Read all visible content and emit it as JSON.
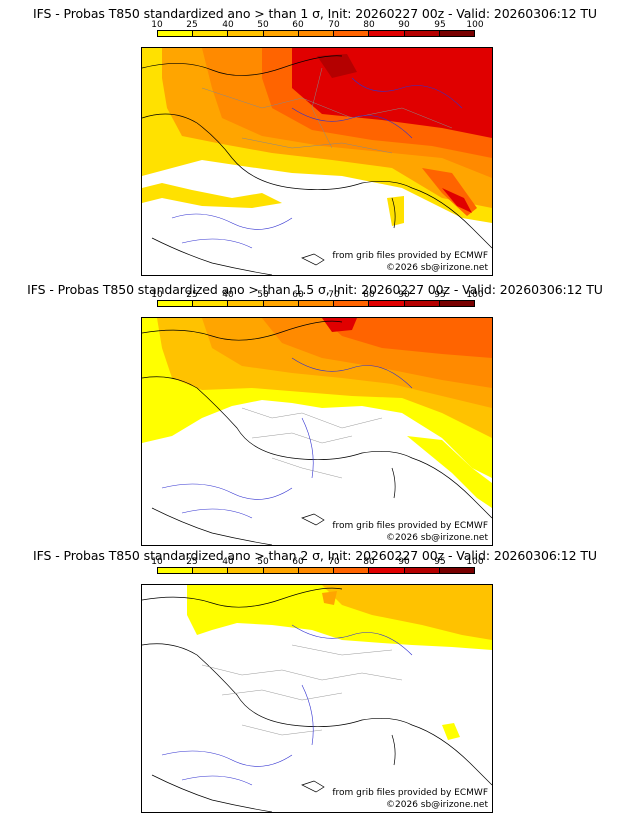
{
  "legend": {
    "ticks": [
      "10",
      "25",
      "40",
      "50",
      "60",
      "70",
      "80",
      "90",
      "95",
      "100"
    ],
    "colors": [
      "#ffff00",
      "#ffe100",
      "#ffc200",
      "#ffa500",
      "#ff8a00",
      "#ff6400",
      "#e00000",
      "#b40000",
      "#780000"
    ]
  },
  "panels": [
    {
      "title": "IFS - Probas T850  standardized ano > than 1 σ, Init: 20260227 00z - Valid: 20260306:12 TU",
      "source": "from grib files provided by ECMWF",
      "copyright": "©2026 sb@irizone.net"
    },
    {
      "title": "IFS - Probas T850  standardized ano > than 1.5 σ, Init: 20260227 00z - Valid: 20260306:12 TU",
      "source": "from grib files provided by ECMWF",
      "copyright": "©2026 sb@irizone.net"
    },
    {
      "title": "IFS - Probas T850  standardized ano > than 2 σ, Init: 20260227 00z - Valid: 20260306:12 TU",
      "source": "from grib files provided by ECMWF",
      "copyright": "©2026 sb@irizone.net"
    }
  ]
}
